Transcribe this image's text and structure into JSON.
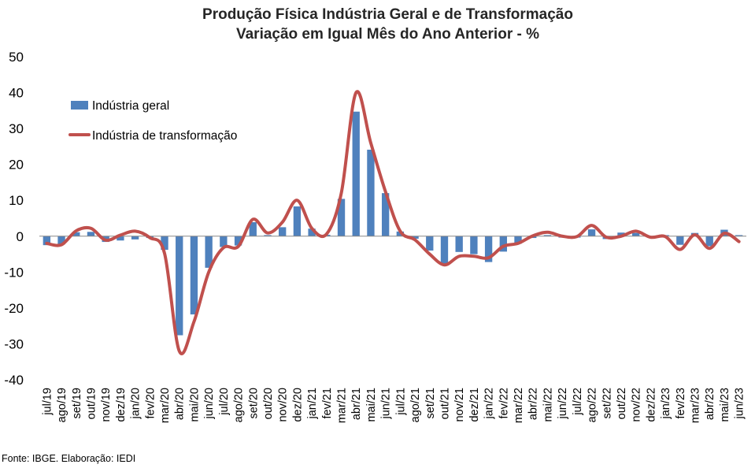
{
  "chart_data": {
    "type": "bar",
    "title": "Produção Física Indústria Geral e de Transformação",
    "subtitle": "Variação em Igual Mês do Ano Anterior - %",
    "ylim": [
      -40,
      50
    ],
    "yticks": [
      50,
      40,
      30,
      20,
      10,
      0,
      -10,
      -20,
      -30,
      -40
    ],
    "grid": false,
    "legend_position": "top-left",
    "categories": [
      "jul/19",
      "ago/19",
      "set/19",
      "out/19",
      "nov/19",
      "dez/19",
      "jan/20",
      "fev/20",
      "mar/20",
      "abr/20",
      "mai/20",
      "jun/20",
      "jul/20",
      "ago/20",
      "set/20",
      "out/20",
      "nov/20",
      "dez/20",
      "jan/21",
      "fev/21",
      "mar/21",
      "abr/21",
      "mai/21",
      "jun/21",
      "jul/21",
      "ago/21",
      "set/21",
      "out/21",
      "nov/21",
      "dez/21",
      "jan/22",
      "fev/22",
      "mar/22",
      "abr/22",
      "mai/22",
      "jun/22",
      "jul/22",
      "ago/22",
      "set/22",
      "out/22",
      "nov/22",
      "dez/22",
      "jan/23",
      "fev/23",
      "mar/23",
      "abr/23",
      "mai/23",
      "jun/23"
    ],
    "series": [
      {
        "name": "Indústria geral",
        "type": "bar",
        "color": "#4F81BD",
        "values": [
          -2.5,
          -2.3,
          1.1,
          1.2,
          -1.6,
          -1.2,
          -0.9,
          -0.5,
          -3.8,
          -27.6,
          -21.8,
          -8.8,
          -3.0,
          -2.6,
          3.9,
          0.3,
          2.5,
          8.3,
          2.1,
          0.4,
          10.4,
          34.7,
          24.1,
          12.0,
          1.3,
          -0.7,
          -4.0,
          -7.7,
          -4.4,
          -5.0,
          -7.2,
          -4.3,
          -2.1,
          -0.5,
          0.3,
          -0.4,
          -0.4,
          1.9,
          -0.8,
          1.0,
          0.9,
          -0.1,
          0.3,
          -2.4,
          0.9,
          -2.8,
          1.8,
          0.3
        ]
      },
      {
        "name": "Indústria de transformação",
        "type": "line",
        "color": "#C0504D",
        "values": [
          -2.0,
          -2.4,
          1.5,
          2.2,
          -1.1,
          0.3,
          1.4,
          -0.4,
          -4.8,
          -32.0,
          -23.8,
          -10.0,
          -3.2,
          -2.9,
          4.7,
          0.9,
          3.9,
          10.0,
          2.2,
          0.6,
          12.0,
          40.0,
          26.0,
          12.4,
          1.4,
          -1.0,
          -5.0,
          -8.0,
          -5.6,
          -5.6,
          -6.0,
          -2.8,
          -2.0,
          0.1,
          1.1,
          0.0,
          -0.1,
          3.0,
          -0.3,
          0.0,
          1.4,
          -0.3,
          -0.1,
          -3.7,
          0.4,
          -3.4,
          0.8,
          -1.5
        ]
      }
    ]
  },
  "footer": {
    "source": "Fonte: IBGE. Elaboração: IEDI"
  }
}
